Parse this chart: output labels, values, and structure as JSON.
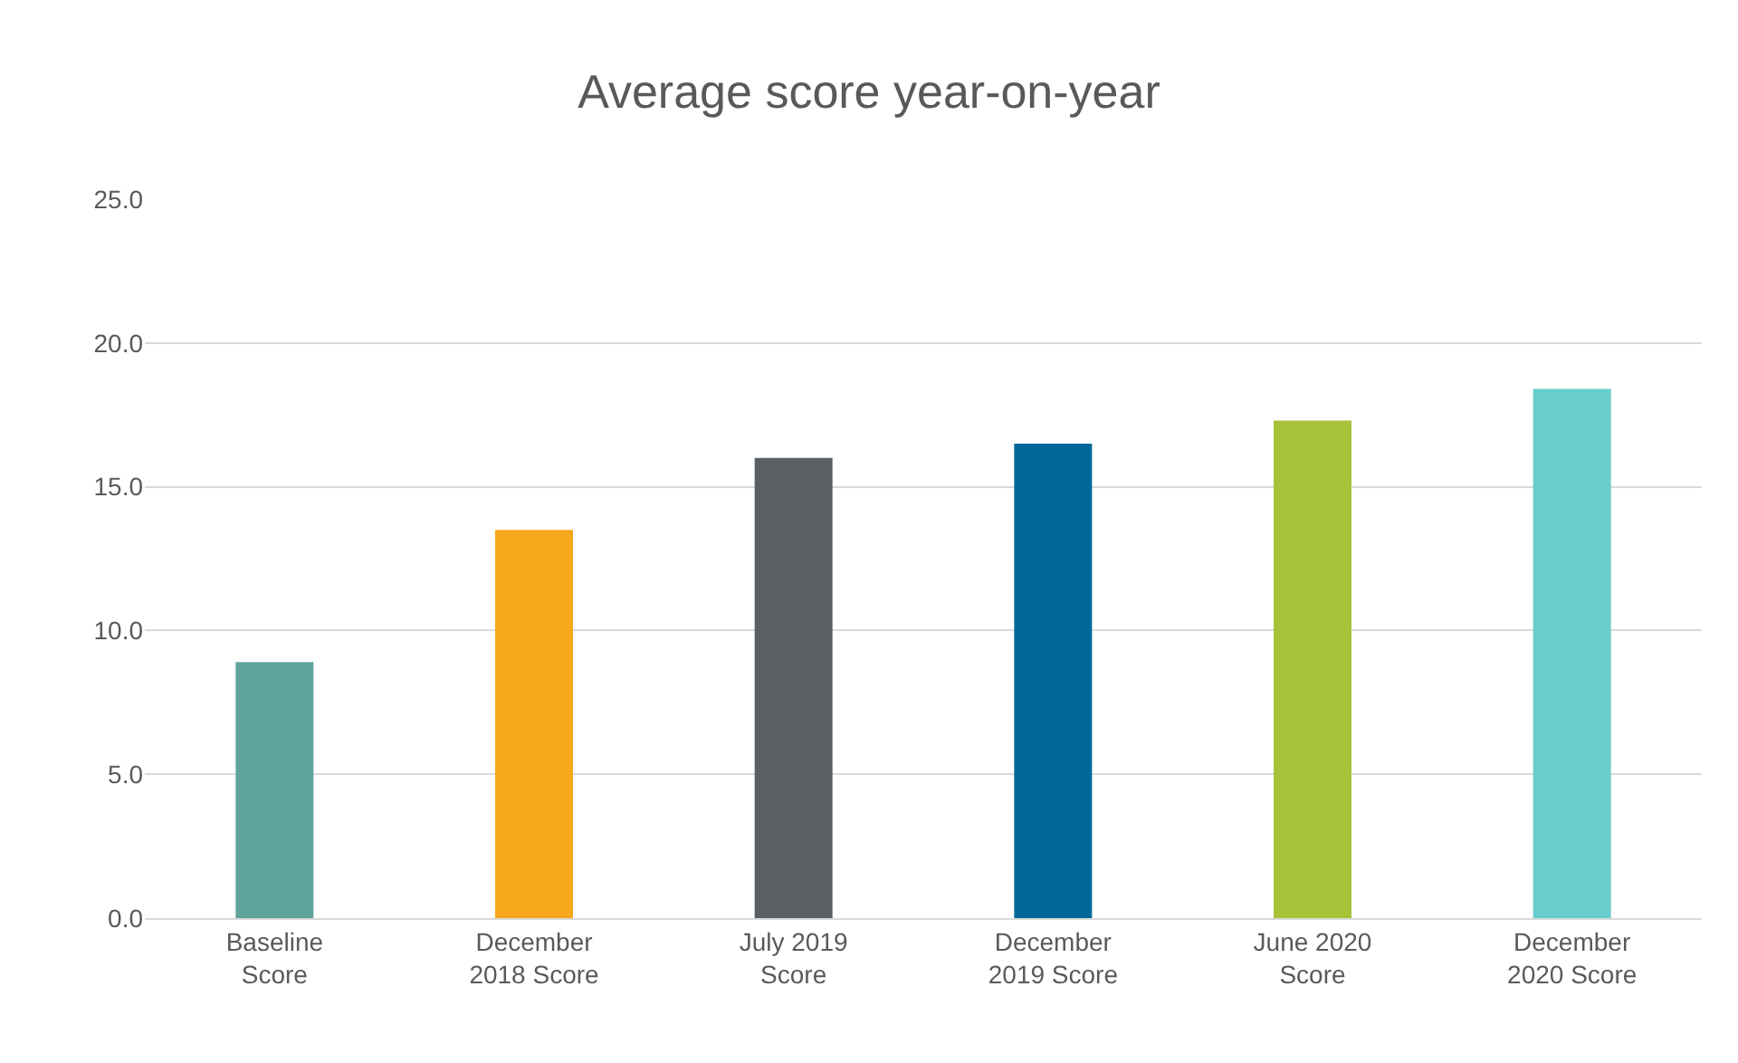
{
  "chart_data": {
    "type": "bar",
    "title": "Average score year-on-year",
    "categories": [
      "Baseline\nScore",
      "December\n2018 Score",
      "July 2019\nScore",
      "December\n2019 Score",
      "June 2020\nScore",
      "December\n2020 Score"
    ],
    "values": [
      8.9,
      13.5,
      16.0,
      16.5,
      17.3,
      18.4
    ],
    "colors": [
      "#5fa39c",
      "#f5a81c",
      "#595f63",
      "#01699a",
      "#a8c23a",
      "#68cdcc"
    ],
    "ylim": [
      0,
      25
    ],
    "yticks": [
      {
        "value": 0,
        "label": "0.0"
      },
      {
        "value": 5,
        "label": "5.0"
      },
      {
        "value": 10,
        "label": "10.0"
      },
      {
        "value": 15,
        "label": "15.0"
      },
      {
        "value": 20,
        "label": "20.0"
      },
      {
        "value": 25,
        "label": "25.0"
      }
    ],
    "grid": "y"
  }
}
